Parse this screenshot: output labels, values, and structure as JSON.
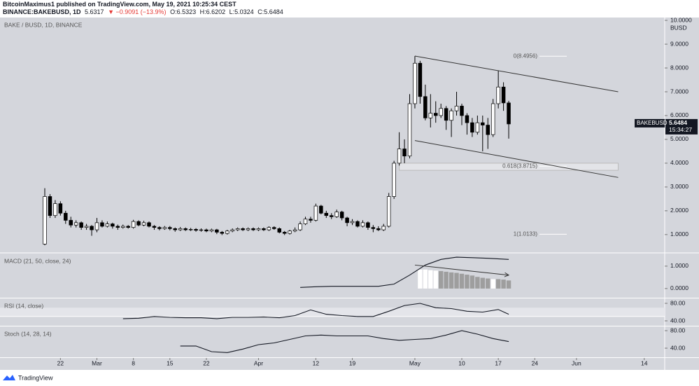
{
  "header": {
    "author": "BitcoinMaximus1 published on TradingView.com, May 19, 2021 10:25:34 CEST",
    "symbol": "BINANCE:BAKEBUSD, 1D",
    "last": "5.6317",
    "change": "▼ −0.9091 (−13.9%)",
    "open": "O:6.5323",
    "high": "H:6.6202",
    "low": "L:5.0324",
    "close": "C:5.6484"
  },
  "footer": {
    "brand": "TradingView"
  },
  "chart_data": [
    {
      "type": "candlestick",
      "title": "BAKE / BUSD, 1D, BINANCE",
      "x": [
        "Feb 19",
        "Feb 20",
        "Feb 21",
        "Feb 22",
        "Feb 23",
        "Feb 24",
        "Feb 25",
        "Feb 26",
        "Feb 27",
        "Feb 28",
        "Mar 1",
        "Mar 2",
        "Mar 3",
        "Mar 4",
        "Mar 5",
        "Mar 6",
        "Mar 7",
        "Mar 8",
        "Mar 9",
        "Mar 10",
        "Mar 11",
        "Mar 12",
        "Mar 13",
        "Mar 14",
        "Mar 15",
        "Mar 16",
        "Mar 17",
        "Mar 18",
        "Mar 19",
        "Mar 20",
        "Mar 21",
        "Mar 22",
        "Mar 23",
        "Mar 24",
        "Mar 25",
        "Mar 26",
        "Mar 27",
        "Mar 28",
        "Mar 29",
        "Mar 30",
        "Mar 31",
        "Apr 1",
        "Apr 2",
        "Apr 3",
        "Apr 4",
        "Apr 5",
        "Apr 6",
        "Apr 7",
        "Apr 8",
        "Apr 9",
        "Apr 10",
        "Apr 11",
        "Apr 12",
        "Apr 13",
        "Apr 14",
        "Apr 15",
        "Apr 16",
        "Apr 17",
        "Apr 18",
        "Apr 19",
        "Apr 20",
        "Apr 21",
        "Apr 22",
        "Apr 23",
        "Apr 24",
        "Apr 25",
        "Apr 26",
        "Apr 27",
        "Apr 28",
        "Apr 29",
        "Apr 30",
        "May 1",
        "May 2",
        "May 3",
        "May 4",
        "May 5",
        "May 6",
        "May 7",
        "May 8",
        "May 9",
        "May 10",
        "May 11",
        "May 12",
        "May 13",
        "May 14",
        "May 15",
        "May 16",
        "May 17",
        "May 18",
        "May 19"
      ],
      "open": [
        0.6,
        2.6,
        1.8,
        2.3,
        1.9,
        1.6,
        1.4,
        1.5,
        1.3,
        1.35,
        1.2,
        1.5,
        1.35,
        1.45,
        1.35,
        1.3,
        1.35,
        1.3,
        1.55,
        1.4,
        1.5,
        1.35,
        1.3,
        1.25,
        1.3,
        1.25,
        1.2,
        1.25,
        1.2,
        1.22,
        1.18,
        1.2,
        1.15,
        1.2,
        1.1,
        1.05,
        1.15,
        1.2,
        1.25,
        1.2,
        1.25,
        1.2,
        1.25,
        1.2,
        1.3,
        1.25,
        1.1,
        1.05,
        1.15,
        1.2,
        1.45,
        1.65,
        1.6,
        2.2,
        1.9,
        1.8,
        1.75,
        1.95,
        1.7,
        1.5,
        1.55,
        1.35,
        1.5,
        1.3,
        1.25,
        1.2,
        1.35,
        2.6,
        4.0,
        4.6,
        4.3,
        6.5,
        8.2,
        6.8,
        5.9,
        6.1,
        6.0,
        6.3,
        5.8,
        6.2,
        6.4,
        6.0,
        5.7,
        5.3,
        5.7,
        5.6,
        5.2,
        6.5,
        7.2,
        6.5323
      ],
      "high": [
        2.95,
        2.7,
        2.45,
        2.4,
        2.0,
        1.75,
        1.6,
        1.55,
        1.45,
        1.4,
        1.7,
        1.6,
        1.55,
        1.5,
        1.42,
        1.42,
        1.4,
        1.62,
        1.6,
        1.58,
        1.55,
        1.4,
        1.35,
        1.36,
        1.36,
        1.3,
        1.32,
        1.3,
        1.28,
        1.27,
        1.26,
        1.25,
        1.25,
        1.24,
        1.15,
        1.2,
        1.26,
        1.3,
        1.3,
        1.3,
        1.3,
        1.3,
        1.3,
        1.35,
        1.35,
        1.3,
        1.15,
        1.2,
        1.3,
        1.55,
        1.75,
        1.75,
        2.3,
        2.25,
        2.0,
        1.9,
        2.05,
        2.0,
        1.75,
        1.65,
        1.6,
        1.6,
        1.55,
        1.4,
        1.35,
        1.45,
        2.75,
        4.1,
        5.3,
        5.0,
        6.9,
        8.5,
        8.3,
        7.3,
        6.9,
        6.6,
        6.5,
        6.4,
        6.3,
        7.0,
        6.5,
        6.1,
        5.9,
        6.0,
        6.0,
        5.9,
        6.7,
        7.9,
        7.4,
        6.6202
      ],
      "low": [
        0.55,
        1.7,
        1.7,
        1.8,
        1.45,
        1.3,
        1.3,
        1.2,
        1.2,
        0.95,
        1.1,
        1.3,
        1.3,
        1.25,
        1.2,
        1.25,
        1.25,
        1.25,
        1.35,
        1.35,
        1.3,
        1.2,
        1.18,
        1.2,
        1.18,
        1.12,
        1.15,
        1.15,
        1.15,
        1.12,
        1.12,
        1.1,
        1.1,
        1.02,
        0.98,
        1.0,
        1.1,
        1.15,
        1.15,
        1.15,
        1.15,
        1.15,
        1.15,
        1.15,
        1.2,
        1.05,
        0.98,
        1.0,
        1.1,
        1.15,
        1.4,
        1.5,
        1.55,
        1.85,
        1.7,
        1.65,
        1.7,
        1.6,
        1.35,
        1.4,
        1.3,
        1.3,
        1.2,
        1.1,
        1.15,
        1.15,
        1.3,
        2.5,
        3.9,
        4.0,
        4.2,
        6.3,
        6.5,
        5.8,
        5.5,
        5.7,
        5.9,
        5.4,
        5.1,
        6.0,
        5.6,
        5.2,
        5.1,
        5.2,
        4.5,
        4.6,
        5.1,
        6.3,
        6.2,
        5.0324
      ],
      "close": [
        2.6,
        1.8,
        2.3,
        1.9,
        1.6,
        1.4,
        1.5,
        1.3,
        1.35,
        1.2,
        1.5,
        1.35,
        1.45,
        1.35,
        1.3,
        1.35,
        1.3,
        1.55,
        1.4,
        1.5,
        1.35,
        1.3,
        1.25,
        1.3,
        1.25,
        1.2,
        1.25,
        1.2,
        1.22,
        1.18,
        1.2,
        1.15,
        1.2,
        1.1,
        1.05,
        1.15,
        1.2,
        1.25,
        1.2,
        1.25,
        1.2,
        1.25,
        1.2,
        1.3,
        1.25,
        1.1,
        1.05,
        1.15,
        1.2,
        1.45,
        1.65,
        1.6,
        2.2,
        1.9,
        1.8,
        1.75,
        1.95,
        1.7,
        1.5,
        1.55,
        1.35,
        1.5,
        1.3,
        1.25,
        1.2,
        1.35,
        2.6,
        4.0,
        4.6,
        4.3,
        6.5,
        8.2,
        6.8,
        5.9,
        6.1,
        6.0,
        6.3,
        5.8,
        6.2,
        6.4,
        6.0,
        5.7,
        5.3,
        5.7,
        5.6,
        5.2,
        6.5,
        7.2,
        6.5323,
        5.6484
      ],
      "up_color": "#ffffff",
      "down_color": "#000000",
      "ylim": [
        0.26,
        10.12
      ],
      "yticks": [
        {
          "value": 1,
          "label": "1.0000"
        },
        {
          "value": 2,
          "label": "2.0000"
        },
        {
          "value": 3,
          "label": "3.0000"
        },
        {
          "value": 4,
          "label": "4.0000"
        },
        {
          "value": 5,
          "label": "5.0000"
        },
        {
          "value": 6,
          "label": "6.0000"
        },
        {
          "value": 7,
          "label": "7.0000"
        },
        {
          "value": 8,
          "label": "8.0000"
        },
        {
          "value": 9,
          "label": "9.0000"
        },
        {
          "value": 10,
          "label": "10.0000"
        }
      ],
      "y_unit": "BUSD",
      "xticks": [
        {
          "value": "Feb 22",
          "label": "22"
        },
        {
          "value": "Mar 1",
          "label": "Mar"
        },
        {
          "value": "Mar 8",
          "label": "8"
        },
        {
          "value": "Mar 15",
          "label": "15"
        },
        {
          "value": "Mar 22",
          "label": "22"
        },
        {
          "value": "Apr 1",
          "label": "Apr"
        },
        {
          "value": "Apr 12",
          "label": "12"
        },
        {
          "value": "Apr 19",
          "label": "19"
        },
        {
          "value": "May 1",
          "label": "May"
        },
        {
          "value": "May 10",
          "label": "10"
        },
        {
          "value": "May 17",
          "label": "17"
        },
        {
          "value": "May 24",
          "label": "24"
        },
        {
          "value": "Jun 1",
          "label": "Jun"
        },
        {
          "value": "Jun 14",
          "label": "14"
        }
      ],
      "symbol_tag": "BAKEBUSD",
      "last_price": 5.6484,
      "countdown": "15:34:27",
      "fib_levels": [
        {
          "label": "0(8.4956)",
          "value": 8.4956
        },
        {
          "label": "0.618(3.8715)",
          "value": 3.8715
        },
        {
          "label": "1(1.0133)",
          "value": 1.0133
        }
      ],
      "zones": [
        {
          "from": 3.7,
          "to": 4.0,
          "x": [
            "Apr 28",
            "Jun 9"
          ]
        }
      ],
      "trendlines": [
        {
          "x": [
            "May 1",
            "Jun 9"
          ],
          "y": [
            8.5,
            7.0
          ]
        },
        {
          "x": [
            "May 1",
            "Jun 9"
          ],
          "y": [
            4.95,
            3.4
          ]
        }
      ]
    },
    {
      "type": "macd",
      "title": "MACD (21, 50, close, 24)",
      "x": [
        "Apr 9",
        "Apr 12",
        "Apr 15",
        "Apr 18",
        "Apr 21",
        "Apr 24",
        "Apr 27",
        "Apr 30",
        "May 3",
        "May 6",
        "May 9",
        "May 12",
        "May 15",
        "May 19"
      ],
      "values": [
        0.05,
        0.08,
        0.1,
        0.1,
        0.1,
        0.1,
        0.2,
        0.6,
        1.05,
        1.3,
        1.4,
        1.38,
        1.35,
        1.3
      ],
      "histogram": {
        "x": [
          "May 2",
          "May 3",
          "May 4",
          "May 5",
          "May 6",
          "May 7",
          "May 8",
          "May 9",
          "May 10",
          "May 11",
          "May 12",
          "May 13",
          "May 14",
          "May 15",
          "May 16",
          "May 17",
          "May 18",
          "May 19"
        ],
        "values": [
          0.85,
          0.85,
          0.82,
          0.8,
          0.78,
          0.75,
          0.72,
          0.7,
          0.66,
          0.62,
          0.58,
          0.52,
          0.48,
          0.45,
          0.42,
          0.42,
          0.4,
          0.36
        ],
        "colors": [
          "#ffffff",
          "#ffffff",
          "#ffffff",
          "#ffffff",
          "#9e9e9e",
          "#9e9e9e",
          "#9e9e9e",
          "#9e9e9e",
          "#9e9e9e",
          "#9e9e9e",
          "#9e9e9e",
          "#9e9e9e",
          "#9e9e9e",
          "#9e9e9e",
          "#ffffff",
          "#9e9e9e",
          "#9e9e9e",
          "#9e9e9e"
        ]
      },
      "ylim": [
        -0.41,
        1.56
      ],
      "yticks": [
        {
          "value": 0,
          "label": "0.0000"
        },
        {
          "value": 1,
          "label": "1.0000"
        }
      ],
      "trendlines": [
        {
          "x": [
            "May 1",
            "May 19"
          ],
          "y": [
            1.05,
            0.6
          ]
        }
      ]
    },
    {
      "type": "line",
      "title": "RSI (14, close)",
      "x": [
        "Mar 6",
        "Mar 9",
        "Mar 12",
        "Mar 15",
        "Mar 18",
        "Mar 21",
        "Mar 24",
        "Mar 27",
        "Mar 30",
        "Apr 2",
        "Apr 5",
        "Apr 8",
        "Apr 11",
        "Apr 14",
        "Apr 17",
        "Apr 20",
        "Apr 23",
        "Apr 26",
        "Apr 29",
        "May 2",
        "May 5",
        "May 8",
        "May 11",
        "May 14",
        "May 17",
        "May 19"
      ],
      "values": [
        45,
        46,
        50,
        48,
        47,
        47,
        45,
        48,
        48,
        49,
        47,
        52,
        65,
        55,
        52,
        50,
        50,
        62,
        75,
        80,
        70,
        68,
        62,
        60,
        66,
        55
      ],
      "color": "#131722",
      "band": [
        50,
        70
      ],
      "ylim": [
        28.8,
        91.2
      ],
      "yticks": [
        {
          "value": 40,
          "label": "40.00"
        },
        {
          "value": 80,
          "label": "80.00"
        }
      ]
    },
    {
      "type": "line",
      "title": "Stoch (14, 28, 14)",
      "x": [
        "Mar 17",
        "Mar 20",
        "Mar 23",
        "Mar 26",
        "Mar 29",
        "Apr 1",
        "Apr 4",
        "Apr 7",
        "Apr 10",
        "Apr 13",
        "Apr 16",
        "Apr 19",
        "Apr 22",
        "Apr 25",
        "Apr 28",
        "May 1",
        "May 4",
        "May 7",
        "May 10",
        "May 13",
        "May 16",
        "May 19"
      ],
      "values": [
        45,
        45,
        32,
        30,
        38,
        48,
        52,
        60,
        68,
        70,
        68,
        68,
        68,
        62,
        58,
        60,
        62,
        70,
        80,
        72,
        62,
        55
      ],
      "color": "#131722",
      "ylim": [
        19.2,
        89.6
      ],
      "yticks": [
        {
          "value": 40,
          "label": "40.00"
        },
        {
          "value": 80,
          "label": "80.00"
        }
      ]
    }
  ]
}
